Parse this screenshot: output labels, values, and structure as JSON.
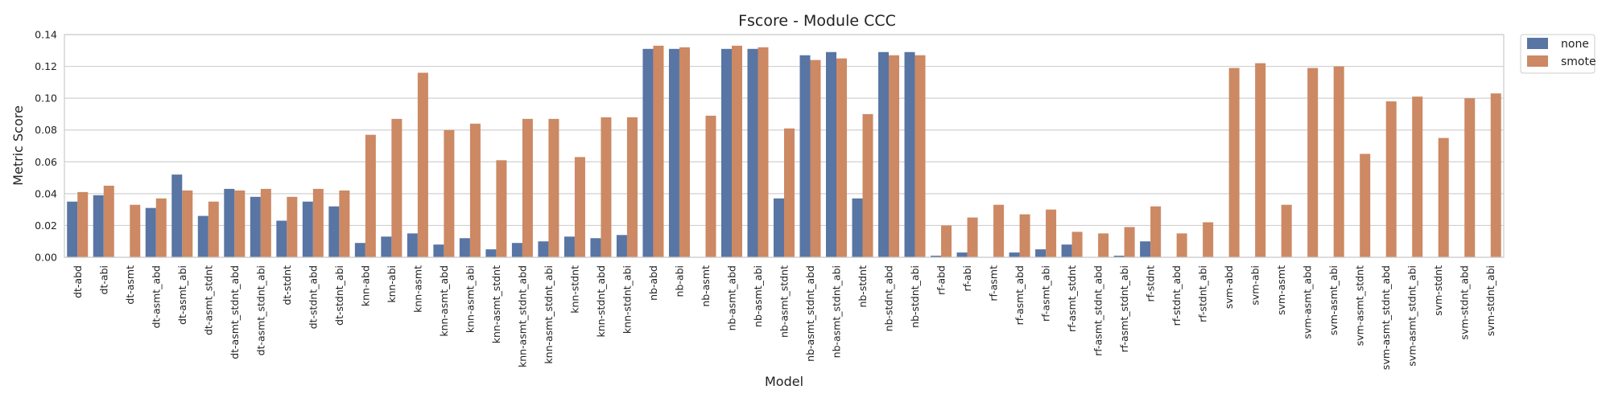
{
  "chart_data": {
    "type": "bar",
    "title": "Fscore - Module CCC",
    "xlabel": "Model",
    "ylabel": "Metric Score",
    "ylim": [
      0,
      0.14
    ],
    "yticks": [
      "0.00",
      "0.02",
      "0.04",
      "0.06",
      "0.08",
      "0.10",
      "0.12",
      "0.14"
    ],
    "grid": true,
    "legend_position": "outside-top-right",
    "categories": [
      "dt-abd",
      "dt-abi",
      "dt-asmt",
      "dt-asmt_abd",
      "dt-asmt_abi",
      "dt-asmt_stdnt",
      "dt-asmt_stdnt_abd",
      "dt-asmt_stdnt_abi",
      "dt-stdnt",
      "dt-stdnt_abd",
      "dt-stdnt_abi",
      "knn-abd",
      "knn-abi",
      "knn-asmt",
      "knn-asmt_abd",
      "knn-asmt_abi",
      "knn-asmt_stdnt",
      "knn-asmt_stdnt_abd",
      "knn-asmt_stdnt_abi",
      "knn-stdnt",
      "knn-stdnt_abd",
      "knn-stdnt_abi",
      "nb-abd",
      "nb-abi",
      "nb-asmt",
      "nb-asmt_abd",
      "nb-asmt_abi",
      "nb-asmt_stdnt",
      "nb-asmt_stdnt_abd",
      "nb-asmt_stdnt_abi",
      "nb-stdnt",
      "nb-stdnt_abd",
      "nb-stdnt_abi",
      "rf-abd",
      "rf-abi",
      "rf-asmt",
      "rf-asmt_abd",
      "rf-asmt_abi",
      "rf-asmt_stdnt",
      "rf-asmt_stdnt_abd",
      "rf-asmt_stdnt_abi",
      "rf-stdnt",
      "rf-stdnt_abd",
      "rf-stdnt_abi",
      "svm-abd",
      "svm-abi",
      "svm-asmt",
      "svm-asmt_abd",
      "svm-asmt_abi",
      "svm-asmt_stdnt",
      "svm-asmt_stdnt_abd",
      "svm-asmt_stdnt_abi",
      "svm-stdnt",
      "svm-stdnt_abd",
      "svm-stdnt_abi"
    ],
    "series": [
      {
        "name": "none",
        "color": "#5875a4",
        "values": [
          0.035,
          0.039,
          0.0,
          0.031,
          0.052,
          0.026,
          0.043,
          0.038,
          0.023,
          0.035,
          0.032,
          0.009,
          0.013,
          0.015,
          0.008,
          0.012,
          0.005,
          0.009,
          0.01,
          0.013,
          0.012,
          0.014,
          0.131,
          0.131,
          0.0,
          0.131,
          0.131,
          0.037,
          0.127,
          0.129,
          0.037,
          0.129,
          0.129,
          0.001,
          0.003,
          0.0,
          0.003,
          0.005,
          0.008,
          0.0,
          0.001,
          0.01,
          0.0,
          0.0,
          0.0,
          0.0,
          0.0,
          0.0,
          0.0,
          0.0,
          0.0,
          0.0,
          0.0,
          0.0,
          0.0
        ]
      },
      {
        "name": "smote",
        "color": "#cc8963",
        "values": [
          0.041,
          0.045,
          0.033,
          0.037,
          0.042,
          0.035,
          0.042,
          0.043,
          0.038,
          0.043,
          0.042,
          0.077,
          0.087,
          0.116,
          0.08,
          0.084,
          0.061,
          0.087,
          0.087,
          0.063,
          0.088,
          0.088,
          0.133,
          0.132,
          0.089,
          0.133,
          0.132,
          0.081,
          0.124,
          0.125,
          0.09,
          0.127,
          0.127,
          0.02,
          0.025,
          0.033,
          0.027,
          0.03,
          0.016,
          0.015,
          0.019,
          0.032,
          0.015,
          0.022,
          0.119,
          0.122,
          0.033,
          0.119,
          0.12,
          0.065,
          0.098,
          0.101,
          0.075,
          0.1,
          0.103
        ]
      }
    ]
  }
}
